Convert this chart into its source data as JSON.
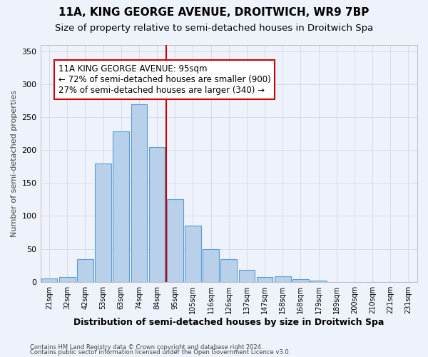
{
  "title": "11A, KING GEORGE AVENUE, DROITWICH, WR9 7BP",
  "subtitle": "Size of property relative to semi-detached houses in Droitwich Spa",
  "xlabel": "Distribution of semi-detached houses by size in Droitwich Spa",
  "ylabel": "Number of semi-detached properties",
  "bin_labels": [
    "21sqm",
    "32sqm",
    "42sqm",
    "53sqm",
    "63sqm",
    "74sqm",
    "84sqm",
    "95sqm",
    "105sqm",
    "116sqm",
    "126sqm",
    "137sqm",
    "147sqm",
    "158sqm",
    "168sqm",
    "179sqm",
    "189sqm",
    "200sqm",
    "210sqm",
    "221sqm",
    "231sqm"
  ],
  "counts": [
    5,
    7,
    34,
    180,
    228,
    270,
    205,
    125,
    85,
    50,
    34,
    18,
    7,
    8,
    4,
    2,
    0,
    0,
    0,
    0,
    0
  ],
  "bar_color": "#b8d0ea",
  "bar_edge_color": "#5b9bd5",
  "vline_pos": 7,
  "vline_color": "#cc0000",
  "annotation_text": "11A KING GEORGE AVENUE: 95sqm\n← 72% of semi-detached houses are smaller (900)\n27% of semi-detached houses are larger (340) →",
  "annotation_box_color": "#ffffff",
  "annotation_box_edge": "#cc0000",
  "ylim": [
    0,
    360
  ],
  "yticks": [
    0,
    50,
    100,
    150,
    200,
    250,
    300,
    350
  ],
  "footer1": "Contains HM Land Registry data © Crown copyright and database right 2024.",
  "footer2": "Contains public sector information licensed under the Open Government Licence v3.0.",
  "bg_color": "#eef2fb",
  "grid_color": "#d0d8e8",
  "title_fontsize": 11,
  "subtitle_fontsize": 9.5,
  "annotation_fontsize": 8.5
}
